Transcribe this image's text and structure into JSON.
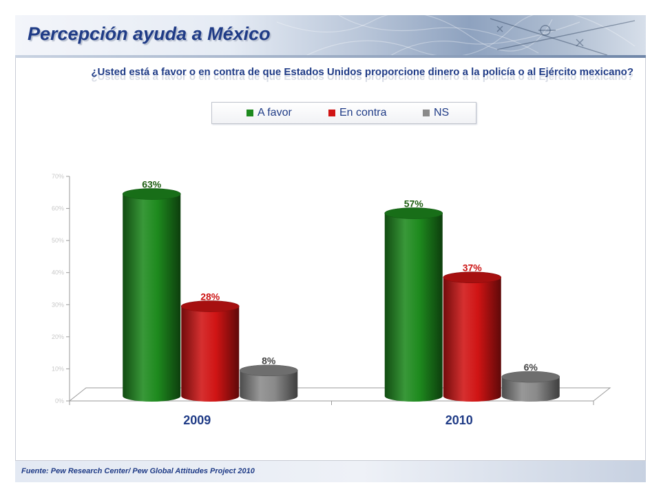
{
  "slide": {
    "title": "Percepción ayuda a México",
    "question": "¿Usted está a favor o en contra de que Estados Unidos proporcione dinero a la policía o al Ejército mexicano?",
    "source": "Fuente: Pew Research Center/ Pew Global Attitudes Project 2010"
  },
  "legend": {
    "items": [
      {
        "label": "A favor",
        "color": "#1e8a1e"
      },
      {
        "label": "En contra",
        "color": "#d01414"
      },
      {
        "label": "NS",
        "color": "#8a8a8a"
      }
    ]
  },
  "chart_data": {
    "type": "bar",
    "title": "",
    "xlabel": "",
    "ylabel": "",
    "categories": [
      "2009",
      "2010"
    ],
    "series": [
      {
        "name": "A favor",
        "values": [
          63,
          57
        ],
        "labels": [
          "63%",
          "57%"
        ],
        "color": "#1e8a1e",
        "label_color": "#1f5e12"
      },
      {
        "name": "En contra",
        "values": [
          28,
          37
        ],
        "labels": [
          "28%",
          "37%"
        ],
        "color": "#d01414",
        "label_color": "#cc1111"
      },
      {
        "name": "NS",
        "values": [
          8,
          6
        ],
        "labels": [
          "8%",
          "6%"
        ],
        "color": "#8a8a8a",
        "label_color": "#444444"
      }
    ],
    "ylim": [
      0,
      70
    ],
    "yticks": [
      "0%",
      "10%",
      "20%",
      "30%",
      "40%",
      "50%",
      "60%",
      "70%"
    ],
    "grid": false,
    "legend_position": "top",
    "style": "3d-cylinder"
  }
}
